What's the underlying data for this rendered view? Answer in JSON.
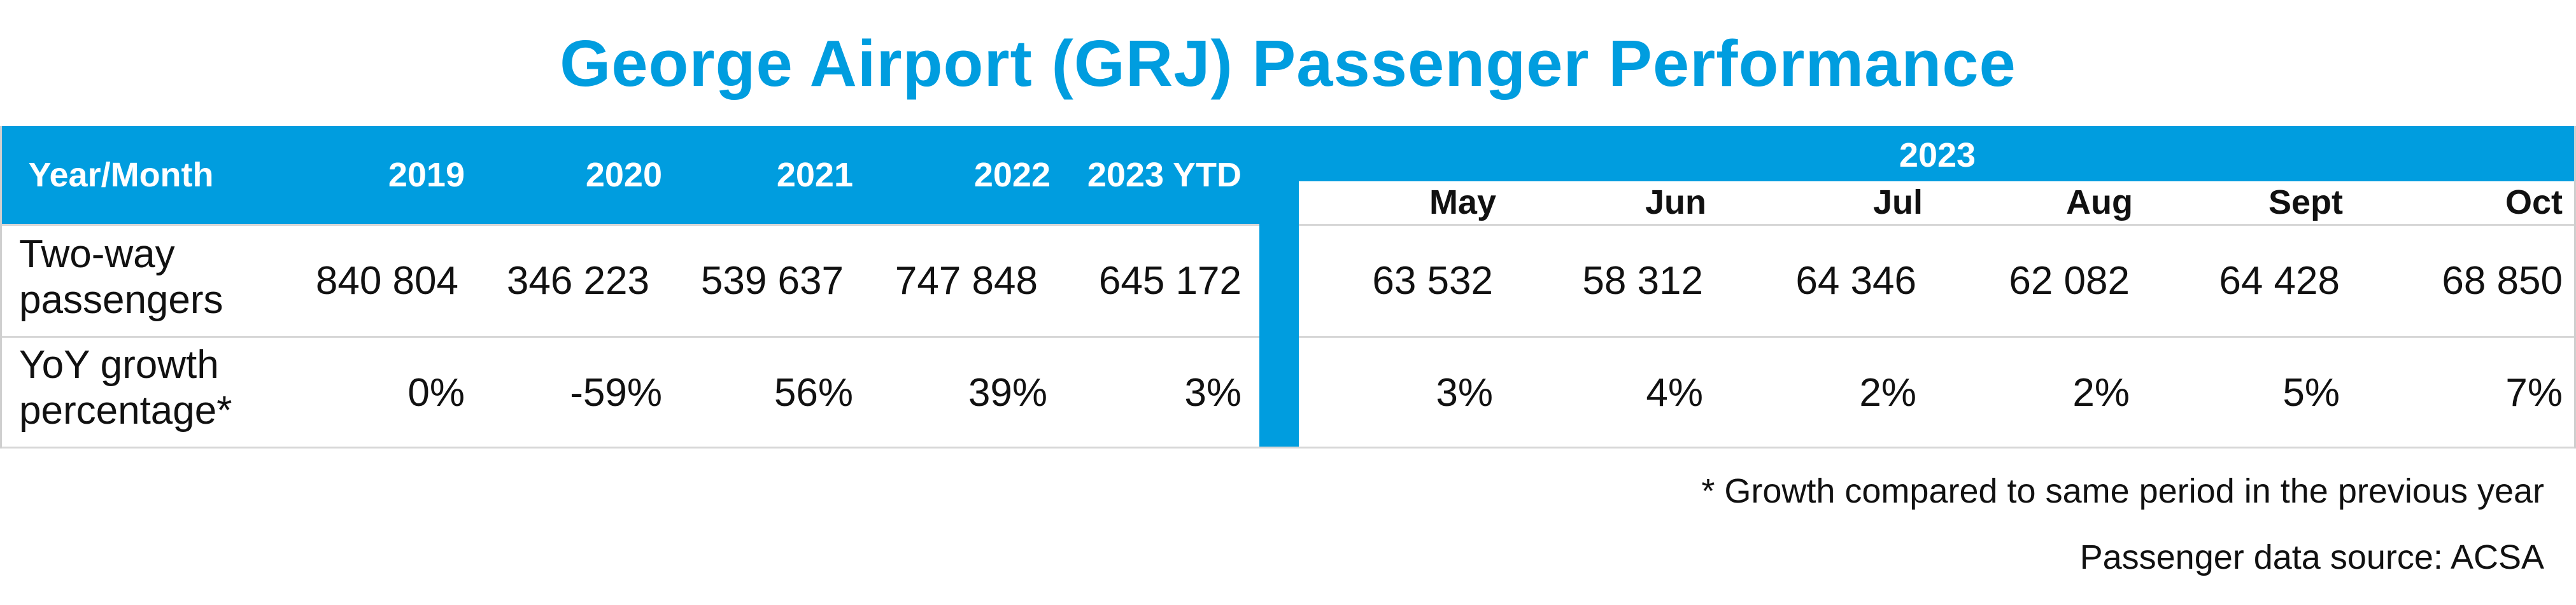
{
  "title": "George Airport (GRJ) Passenger Performance",
  "colors": {
    "accent": "#009ddf",
    "header_text": "#ffffff",
    "body_text": "#111111"
  },
  "table": {
    "left_headers": [
      "Year/Month",
      "2019",
      "2020",
      "2021",
      "2022",
      "2023 YTD"
    ],
    "right_group_label": "2023",
    "right_headers": [
      "May",
      "Jun",
      "Jul",
      "Aug",
      "Sept",
      "Oct"
    ],
    "rows": [
      {
        "label_line1": "Two-way",
        "label_line2": "passengers",
        "left_values": [
          "840 804",
          "346 223",
          "539 637",
          "747 848",
          "645 172"
        ],
        "right_values": [
          "63 532",
          "58 312",
          "64 346",
          "62 082",
          "64 428",
          "68 850"
        ]
      },
      {
        "label_line1": "YoY growth",
        "label_line2": "percentage*",
        "left_values": [
          "0%",
          "-59%",
          "56%",
          "39%",
          "3%"
        ],
        "right_values": [
          "3%",
          "4%",
          "2%",
          "2%",
          "5%",
          "7%"
        ]
      }
    ]
  },
  "footnotes": {
    "growth_note": "* Growth compared to same period in the previous year",
    "source_note": "Passenger data source: ACSA"
  }
}
